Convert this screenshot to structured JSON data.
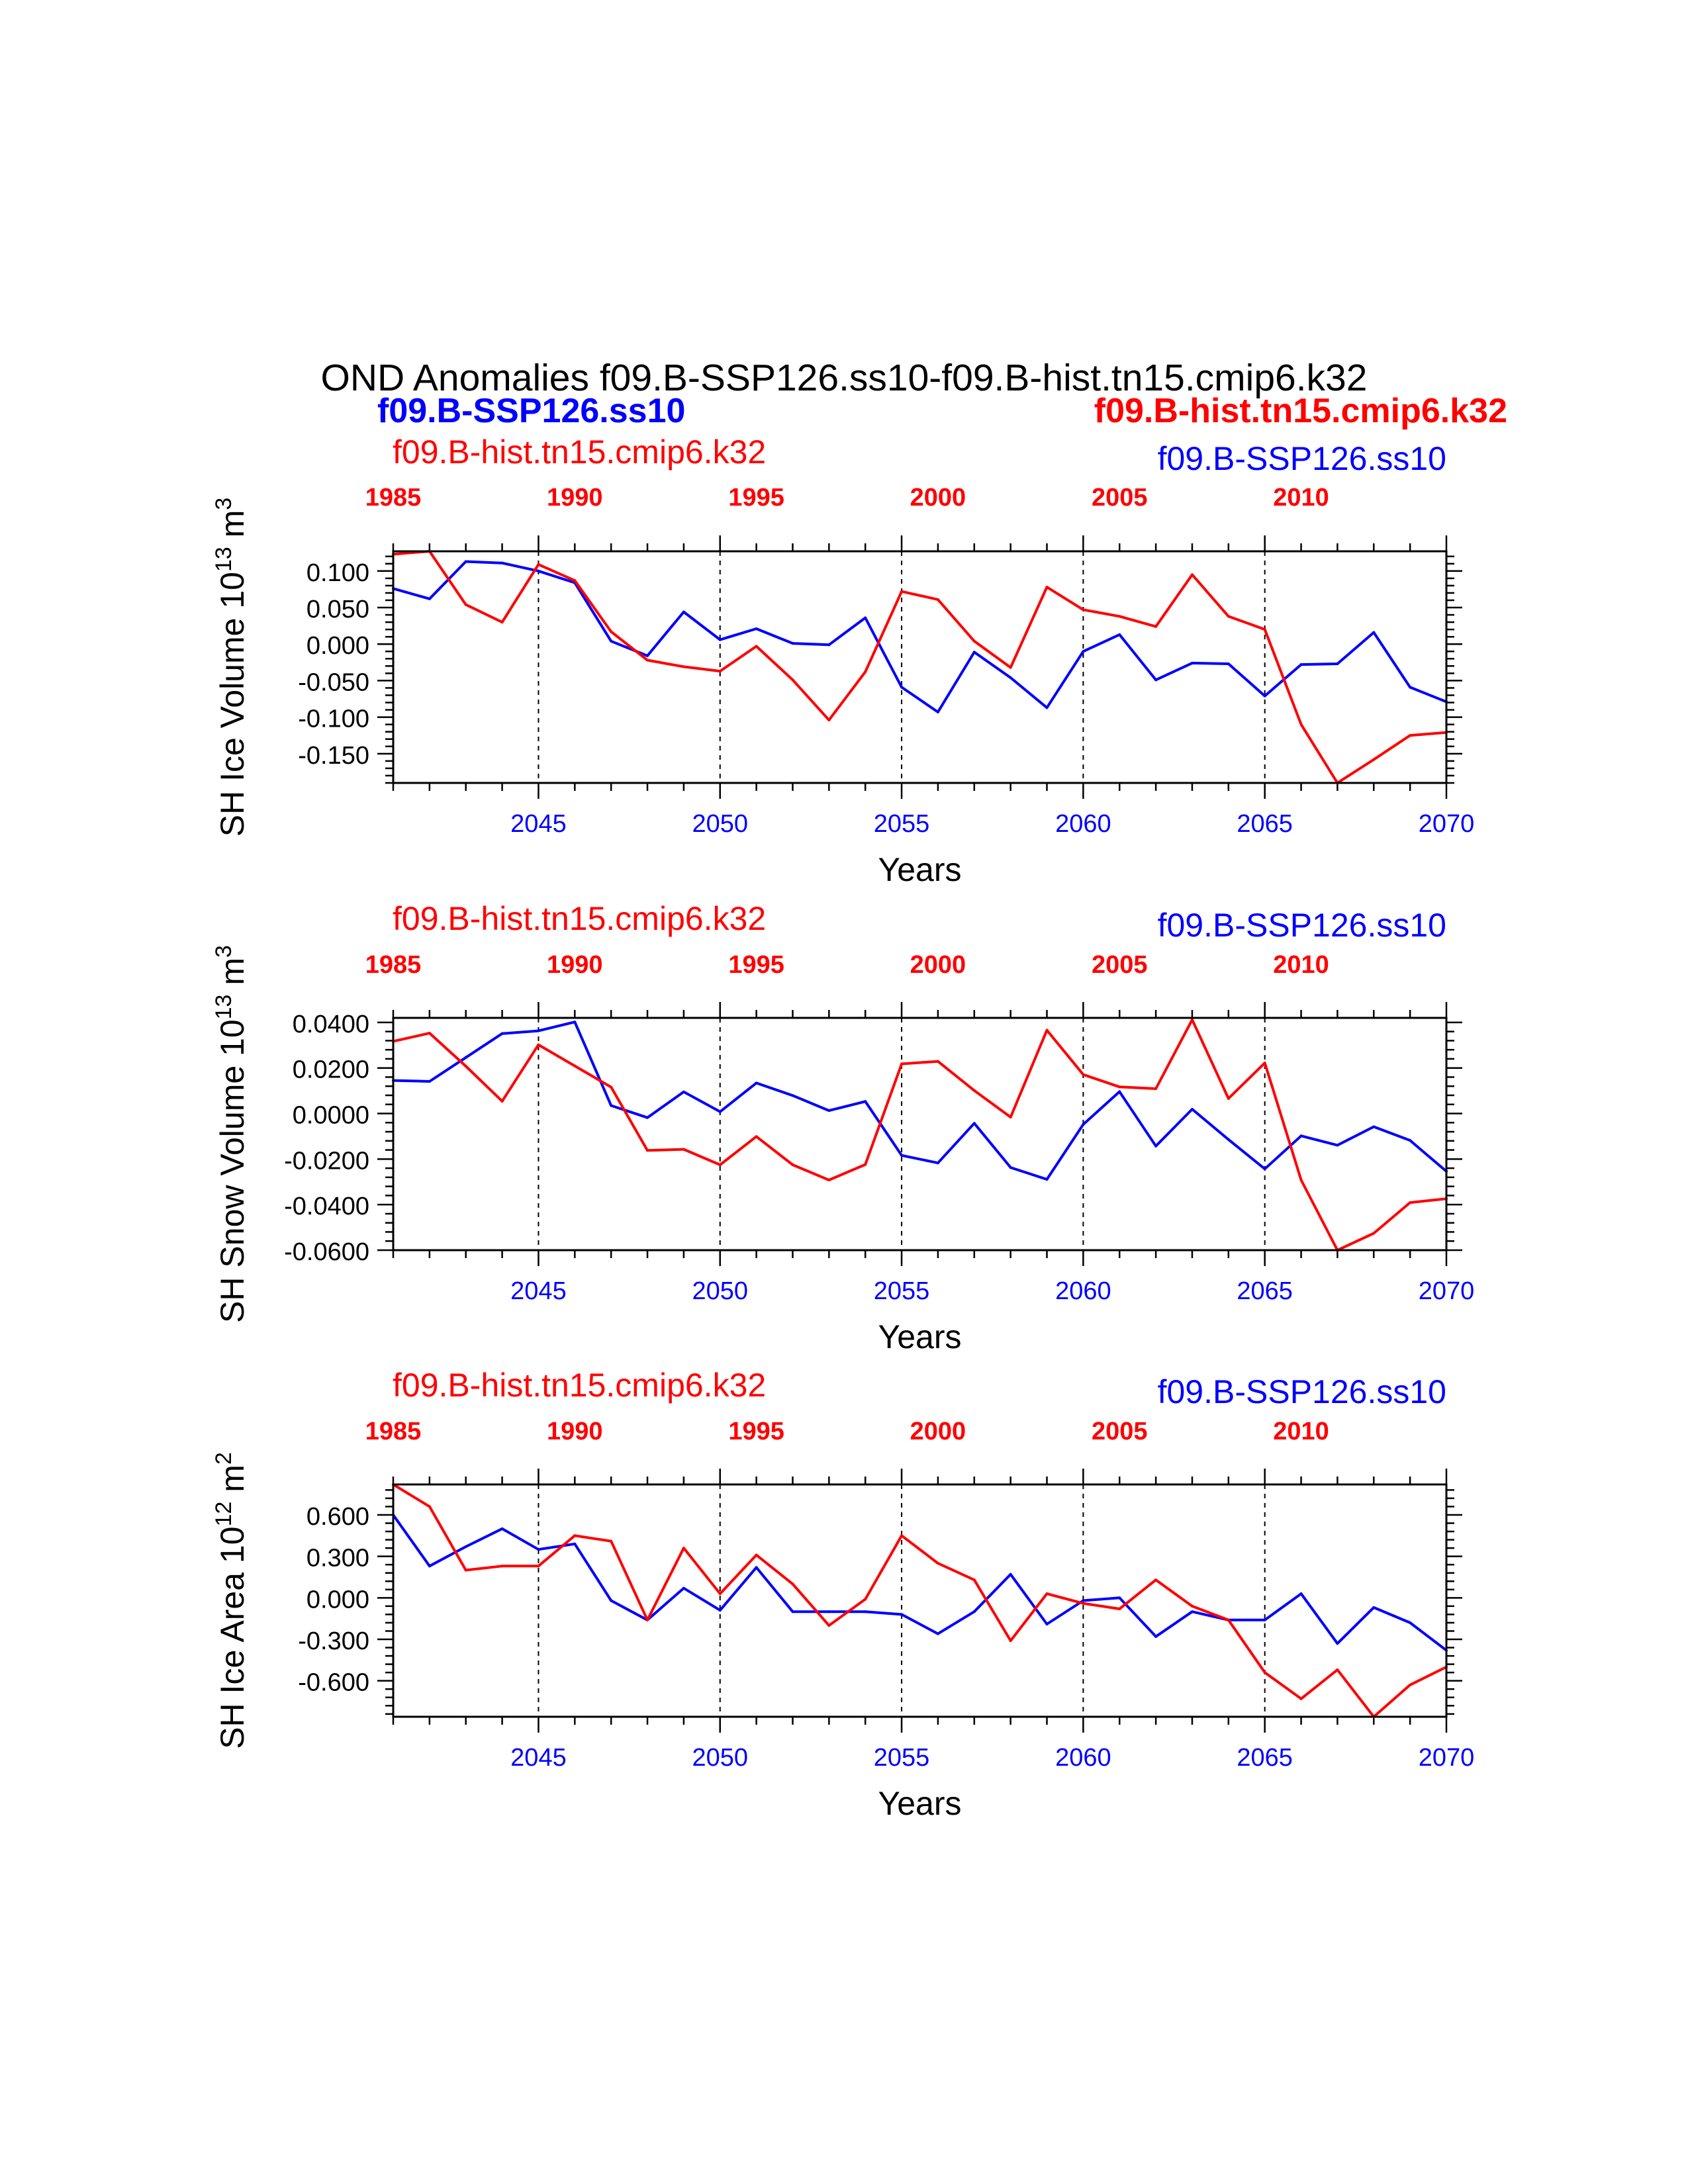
{
  "figure": {
    "title": "OND Anomalies f09.B-SSP126.ss10-f09.B-hist.tn15.cmip6.k32",
    "legend_bold_left": "f09.B-SSP126.ss10",
    "legend_bold_right": "f09.B-hist.tn15.cmip6.k32"
  },
  "colors": {
    "blue": "#0000ff",
    "red": "#ff0000",
    "axis": "#000000"
  },
  "chart_data": [
    {
      "type": "line",
      "ylabel": "SH Ice Volume 10",
      "ylabel_sup": "13",
      "ylabel_unit": " m",
      "ylabel_unit_sup": "3",
      "xlabel": "Years",
      "label_red": "f09.B-hist.tn15.cmip6.k32",
      "label_blue": "f09.B-SSP126.ss10",
      "ylim": [
        -0.19,
        0.127
      ],
      "yticks": [
        0.1,
        0.05,
        0.0,
        -0.05,
        -0.1,
        -0.15
      ],
      "ytick_labels": [
        "0.100",
        "0.050",
        "0.000",
        "-0.050",
        "-0.100",
        "-0.150"
      ],
      "x_bottom_ticks": [
        2045,
        2050,
        2055,
        2060,
        2065,
        2070
      ],
      "x_top_ticks": [
        1985,
        1990,
        1995,
        2000,
        2005,
        2010
      ],
      "series": [
        {
          "name": "f09.B-SSP126.ss10",
          "color": "blue",
          "x": [
            2041,
            2042,
            2043,
            2044,
            2045,
            2046,
            2047,
            2048,
            2049,
            2050,
            2051,
            2052,
            2053,
            2054,
            2055,
            2056,
            2057,
            2058,
            2059,
            2060,
            2061,
            2062,
            2063,
            2064,
            2065,
            2066,
            2067,
            2068,
            2069,
            2070
          ],
          "values": [
            0.076,
            0.062,
            0.113,
            0.111,
            0.1,
            0.084,
            0.004,
            -0.016,
            0.044,
            0.006,
            0.021,
            0.001,
            -0.001,
            0.036,
            -0.059,
            -0.093,
            -0.011,
            -0.046,
            -0.087,
            -0.01,
            0.013,
            -0.049,
            -0.026,
            -0.027,
            -0.071,
            -0.028,
            -0.027,
            0.016,
            -0.059,
            -0.079
          ]
        },
        {
          "name": "f09.B-hist.tn15.cmip6.k32",
          "color": "red",
          "x": [
            2041,
            2042,
            2043,
            2044,
            2045,
            2046,
            2047,
            2048,
            2049,
            2050,
            2051,
            2052,
            2053,
            2054,
            2055,
            2056,
            2057,
            2058,
            2059,
            2060,
            2061,
            2062,
            2063,
            2064,
            2065,
            2066,
            2067,
            2068,
            2069,
            2070
          ],
          "values": [
            0.123,
            0.127,
            0.054,
            0.03,
            0.109,
            0.087,
            0.017,
            -0.022,
            -0.031,
            -0.037,
            -0.003,
            -0.049,
            -0.104,
            -0.038,
            0.072,
            0.061,
            0.004,
            -0.032,
            0.078,
            0.047,
            0.038,
            0.024,
            0.095,
            0.038,
            0.02,
            -0.11,
            -0.19,
            -0.158,
            -0.125,
            -0.121
          ]
        }
      ]
    },
    {
      "type": "line",
      "ylabel": "SH Snow Volume 10",
      "ylabel_sup": "13",
      "ylabel_unit": " m",
      "ylabel_unit_sup": "3",
      "xlabel": "Years",
      "label_red": "f09.B-hist.tn15.cmip6.k32",
      "label_blue": "f09.B-SSP126.ss10",
      "ylim": [
        -0.06,
        0.042
      ],
      "yticks": [
        0.04,
        0.02,
        0.0,
        -0.02,
        -0.04,
        -0.06
      ],
      "ytick_labels": [
        "0.0400",
        "0.0200",
        "0.0000",
        "-0.0200",
        "-0.0400",
        "-0.0600"
      ],
      "x_bottom_ticks": [
        2045,
        2050,
        2055,
        2060,
        2065,
        2070
      ],
      "x_top_ticks": [
        1985,
        1990,
        1995,
        2000,
        2005,
        2010
      ],
      "series": [
        {
          "name": "f09.B-SSP126.ss10",
          "color": "blue",
          "x": [
            2041,
            2042,
            2043,
            2044,
            2045,
            2046,
            2047,
            2048,
            2049,
            2050,
            2051,
            2052,
            2053,
            2054,
            2055,
            2056,
            2057,
            2058,
            2059,
            2060,
            2061,
            2062,
            2063,
            2064,
            2065,
            2066,
            2067,
            2068,
            2069,
            2070
          ],
          "values": [
            0.0145,
            0.0141,
            0.0246,
            0.0351,
            0.0363,
            0.0402,
            0.0035,
            -0.0018,
            0.0095,
            0.0008,
            0.0134,
            0.0079,
            0.0013,
            0.0053,
            -0.0184,
            -0.0217,
            -0.0043,
            -0.0237,
            -0.0289,
            -0.0048,
            0.0096,
            -0.0143,
            0.0019,
            -0.0114,
            -0.0243,
            -0.0098,
            -0.0139,
            -0.0058,
            -0.0118,
            -0.0254
          ]
        },
        {
          "name": "f09.B-hist.tn15.cmip6.k32",
          "color": "red",
          "x": [
            2041,
            2042,
            2043,
            2044,
            2045,
            2046,
            2047,
            2048,
            2049,
            2050,
            2051,
            2052,
            2053,
            2054,
            2055,
            2056,
            2057,
            2058,
            2059,
            2060,
            2061,
            2062,
            2063,
            2064,
            2065,
            2066,
            2067,
            2068,
            2069,
            2070
          ],
          "values": [
            0.0317,
            0.0353,
            0.0208,
            0.0054,
            0.0302,
            0.0209,
            0.0116,
            -0.0162,
            -0.0157,
            -0.0225,
            -0.0101,
            -0.0225,
            -0.0292,
            -0.0224,
            0.0218,
            0.0229,
            0.0101,
            -0.0016,
            0.0366,
            0.0171,
            0.0117,
            0.0109,
            0.0412,
            0.0066,
            0.0222,
            -0.0292,
            -0.06,
            -0.0526,
            -0.0391,
            -0.0374
          ]
        }
      ]
    },
    {
      "type": "line",
      "ylabel": "SH Ice Area 10",
      "ylabel_sup": "12",
      "ylabel_unit": " m",
      "ylabel_unit_sup": "2",
      "xlabel": "Years",
      "label_red": "f09.B-hist.tn15.cmip6.k32",
      "label_blue": "f09.B-SSP126.ss10",
      "ylim": [
        -0.86,
        0.82
      ],
      "yticks": [
        0.6,
        0.3,
        0.0,
        -0.3,
        -0.6
      ],
      "ytick_labels": [
        "0.600",
        "0.300",
        "0.000",
        "-0.300",
        "-0.600"
      ],
      "x_bottom_ticks": [
        2045,
        2050,
        2055,
        2060,
        2065,
        2070
      ],
      "x_top_ticks": [
        1985,
        1990,
        1995,
        2000,
        2005,
        2010
      ],
      "series": [
        {
          "name": "f09.B-SSP126.ss10",
          "color": "blue",
          "x": [
            2041,
            2042,
            2043,
            2044,
            2045,
            2046,
            2047,
            2048,
            2049,
            2050,
            2051,
            2052,
            2053,
            2054,
            2055,
            2056,
            2057,
            2058,
            2059,
            2060,
            2061,
            2062,
            2063,
            2064,
            2065,
            2066,
            2067,
            2068,
            2069,
            2070
          ],
          "values": [
            0.6,
            0.23,
            0.37,
            0.5,
            0.35,
            0.39,
            -0.02,
            -0.16,
            0.07,
            -0.09,
            0.22,
            -0.1,
            -0.1,
            -0.1,
            -0.12,
            -0.26,
            -0.1,
            0.17,
            -0.19,
            -0.02,
            0.0,
            -0.28,
            -0.1,
            -0.16,
            -0.16,
            0.03,
            -0.33,
            -0.07,
            -0.18,
            -0.38
          ]
        },
        {
          "name": "f09.B-hist.tn15.cmip6.k32",
          "color": "red",
          "x": [
            2041,
            2042,
            2043,
            2044,
            2045,
            2046,
            2047,
            2048,
            2049,
            2050,
            2051,
            2052,
            2053,
            2054,
            2055,
            2056,
            2057,
            2058,
            2059,
            2060,
            2061,
            2062,
            2063,
            2064,
            2065,
            2066,
            2067,
            2068,
            2069,
            2070
          ],
          "values": [
            0.82,
            0.66,
            0.2,
            0.23,
            0.23,
            0.45,
            0.41,
            -0.16,
            0.36,
            0.03,
            0.31,
            0.1,
            -0.2,
            -0.01,
            0.45,
            0.25,
            0.13,
            -0.31,
            0.03,
            -0.04,
            -0.08,
            0.13,
            -0.06,
            -0.16,
            -0.54,
            -0.73,
            -0.52,
            -0.86,
            -0.63,
            -0.5
          ]
        }
      ]
    }
  ]
}
